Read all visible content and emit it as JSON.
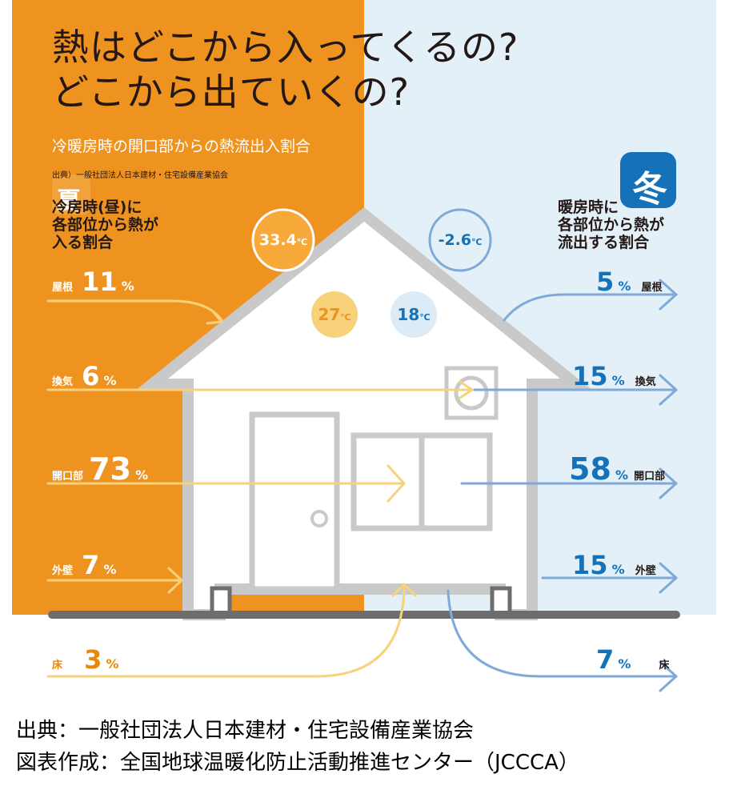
{
  "title_line1": "熱はどこから入ってくるの?",
  "title_line2": "どこから出ていくの?",
  "subtitle": "冷暖房時の開口部からの熱流出入割合",
  "source_small": "出典）一般社団法人日本建材・住宅設備産業協会",
  "summer": {
    "icon": "夏",
    "heading_line1": "冷房時(昼)に",
    "heading_line2": "各部位から熱が",
    "heading_line3": "入る割合",
    "outside_temp": "33.4",
    "inside_temp": "27",
    "temp_unit": "℃",
    "items": [
      {
        "label": "屋根",
        "value": "11",
        "unit": "%"
      },
      {
        "label": "換気",
        "value": "6",
        "unit": "%"
      },
      {
        "label": "開口部",
        "value": "73",
        "unit": "%"
      },
      {
        "label": "外壁",
        "value": "7",
        "unit": "%"
      },
      {
        "label": "床",
        "value": "3",
        "unit": "%"
      }
    ]
  },
  "winter": {
    "icon": "冬",
    "heading_line1": "暖房時に",
    "heading_line2": "各部位から熱が",
    "heading_line3": "流出する割合",
    "outside_temp": "-2.6",
    "inside_temp": "18",
    "temp_unit": "℃",
    "items": [
      {
        "label": "屋根",
        "value": "5",
        "unit": "%"
      },
      {
        "label": "換気",
        "value": "15",
        "unit": "%"
      },
      {
        "label": "開口部",
        "value": "58",
        "unit": "%"
      },
      {
        "label": "外壁",
        "value": "15",
        "unit": "%"
      },
      {
        "label": "床",
        "value": "7",
        "unit": "%"
      }
    ]
  },
  "footer_line1": "出典：一般社団法人日本建材・住宅設備産業協会",
  "footer_line2": "図表作成：全国地球温暖化防止活動推進センター（JCCCA）",
  "colors": {
    "summer_bg": "#ee9320",
    "winter_bg": "#e3f0f8",
    "summer_arrow": "#f7d27a",
    "winter_arrow": "#7ea9d9",
    "winter_text": "#1572b9",
    "house_outline": "#c9c9c9",
    "ground": "#6d6d6d"
  }
}
